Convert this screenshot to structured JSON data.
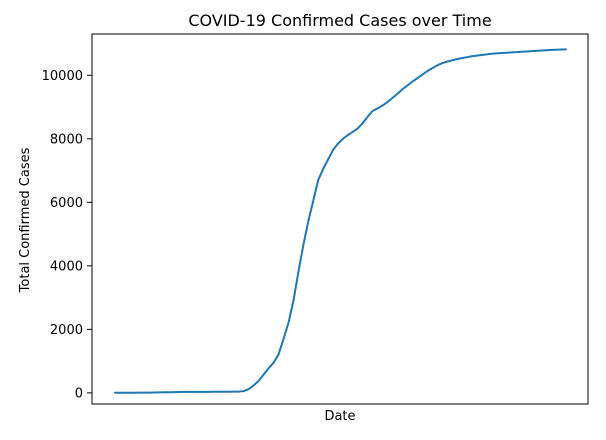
{
  "chart_data": {
    "type": "line",
    "title": "COVID-19 Confirmed Cases over Time",
    "xlabel": "Date",
    "ylabel": "Total Confirmed Cases",
    "x_ticks_visible": false,
    "ylim": [
      -350,
      11300
    ],
    "yticks": [
      0,
      2000,
      4000,
      6000,
      8000,
      10000
    ],
    "grid": false,
    "legend": "none",
    "line_color": "#1f77b4",
    "series": [
      {
        "values": [
          5,
          5,
          5,
          6,
          6,
          7,
          8,
          10,
          13,
          15,
          18,
          22,
          25,
          28,
          30,
          30,
          30,
          30,
          31,
          33,
          34,
          34,
          35,
          36,
          38,
          40,
          58,
          120,
          240,
          380,
          580,
          780,
          950,
          1210,
          1700,
          2200,
          2900,
          3800,
          4650,
          5400,
          6050,
          6700,
          7050,
          7350,
          7650,
          7850,
          8000,
          8120,
          8220,
          8330,
          8500,
          8700,
          8880,
          8960,
          9050,
          9160,
          9290,
          9420,
          9560,
          9680,
          9800,
          9910,
          10020,
          10130,
          10220,
          10310,
          10380,
          10430,
          10470,
          10510,
          10540,
          10570,
          10600,
          10620,
          10640,
          10660,
          10680,
          10690,
          10700,
          10710,
          10720,
          10730,
          10740,
          10750,
          10760,
          10770,
          10780,
          10790,
          10800,
          10805,
          10810,
          10815
        ]
      }
    ]
  }
}
